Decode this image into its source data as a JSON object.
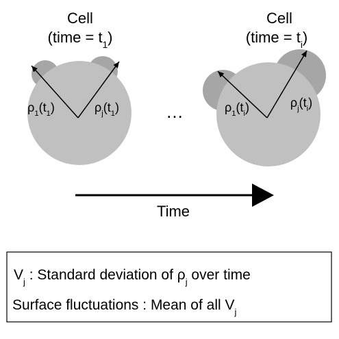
{
  "left_cell": {
    "title": [
      {
        "t": "Cell"
      }
    ],
    "time": [
      {
        "t": "(time = t"
      },
      {
        "t": "1",
        "sub": true
      },
      {
        "t": ")"
      }
    ],
    "rho_1": [
      {
        "t": "ρ"
      },
      {
        "t": "1",
        "sub": true
      },
      {
        "t": "(t"
      },
      {
        "t": "1",
        "sub": true
      },
      {
        "t": ")"
      }
    ],
    "rho_j": [
      {
        "t": "ρ"
      },
      {
        "t": "j",
        "sub": true
      },
      {
        "t": "(t"
      },
      {
        "t": "1",
        "sub": true
      },
      {
        "t": ")"
      }
    ]
  },
  "ellipsis": [
    {
      "t": "…"
    }
  ],
  "right_cell": {
    "title": [
      {
        "t": "Cell"
      }
    ],
    "time": [
      {
        "t": "(time = t"
      },
      {
        "t": "i",
        "sub": true
      },
      {
        "t": ")"
      }
    ],
    "rho_1": [
      {
        "t": "ρ"
      },
      {
        "t": "1",
        "sub": true
      },
      {
        "t": "(t"
      },
      {
        "t": "i",
        "sub": true
      },
      {
        "t": ")"
      }
    ],
    "rho_j": [
      {
        "t": "ρ"
      },
      {
        "t": "j",
        "sub": true
      },
      {
        "t": "(t"
      },
      {
        "t": "i",
        "sub": true
      },
      {
        "t": ")"
      }
    ]
  },
  "time_axis": [
    {
      "t": "Time"
    }
  ],
  "legend": {
    "line_1": [
      {
        "t": "V"
      },
      {
        "t": "j",
        "sub": true
      },
      {
        "t": " : Standard deviation of "
      },
      {
        "t": "ρ"
      },
      {
        "t": "j",
        "sub": true
      },
      {
        "t": " over time"
      }
    ],
    "line_2": [
      {
        "t": "Surface fluctuations : Mean of all V"
      },
      {
        "t": "j",
        "sub": true
      }
    ]
  }
}
